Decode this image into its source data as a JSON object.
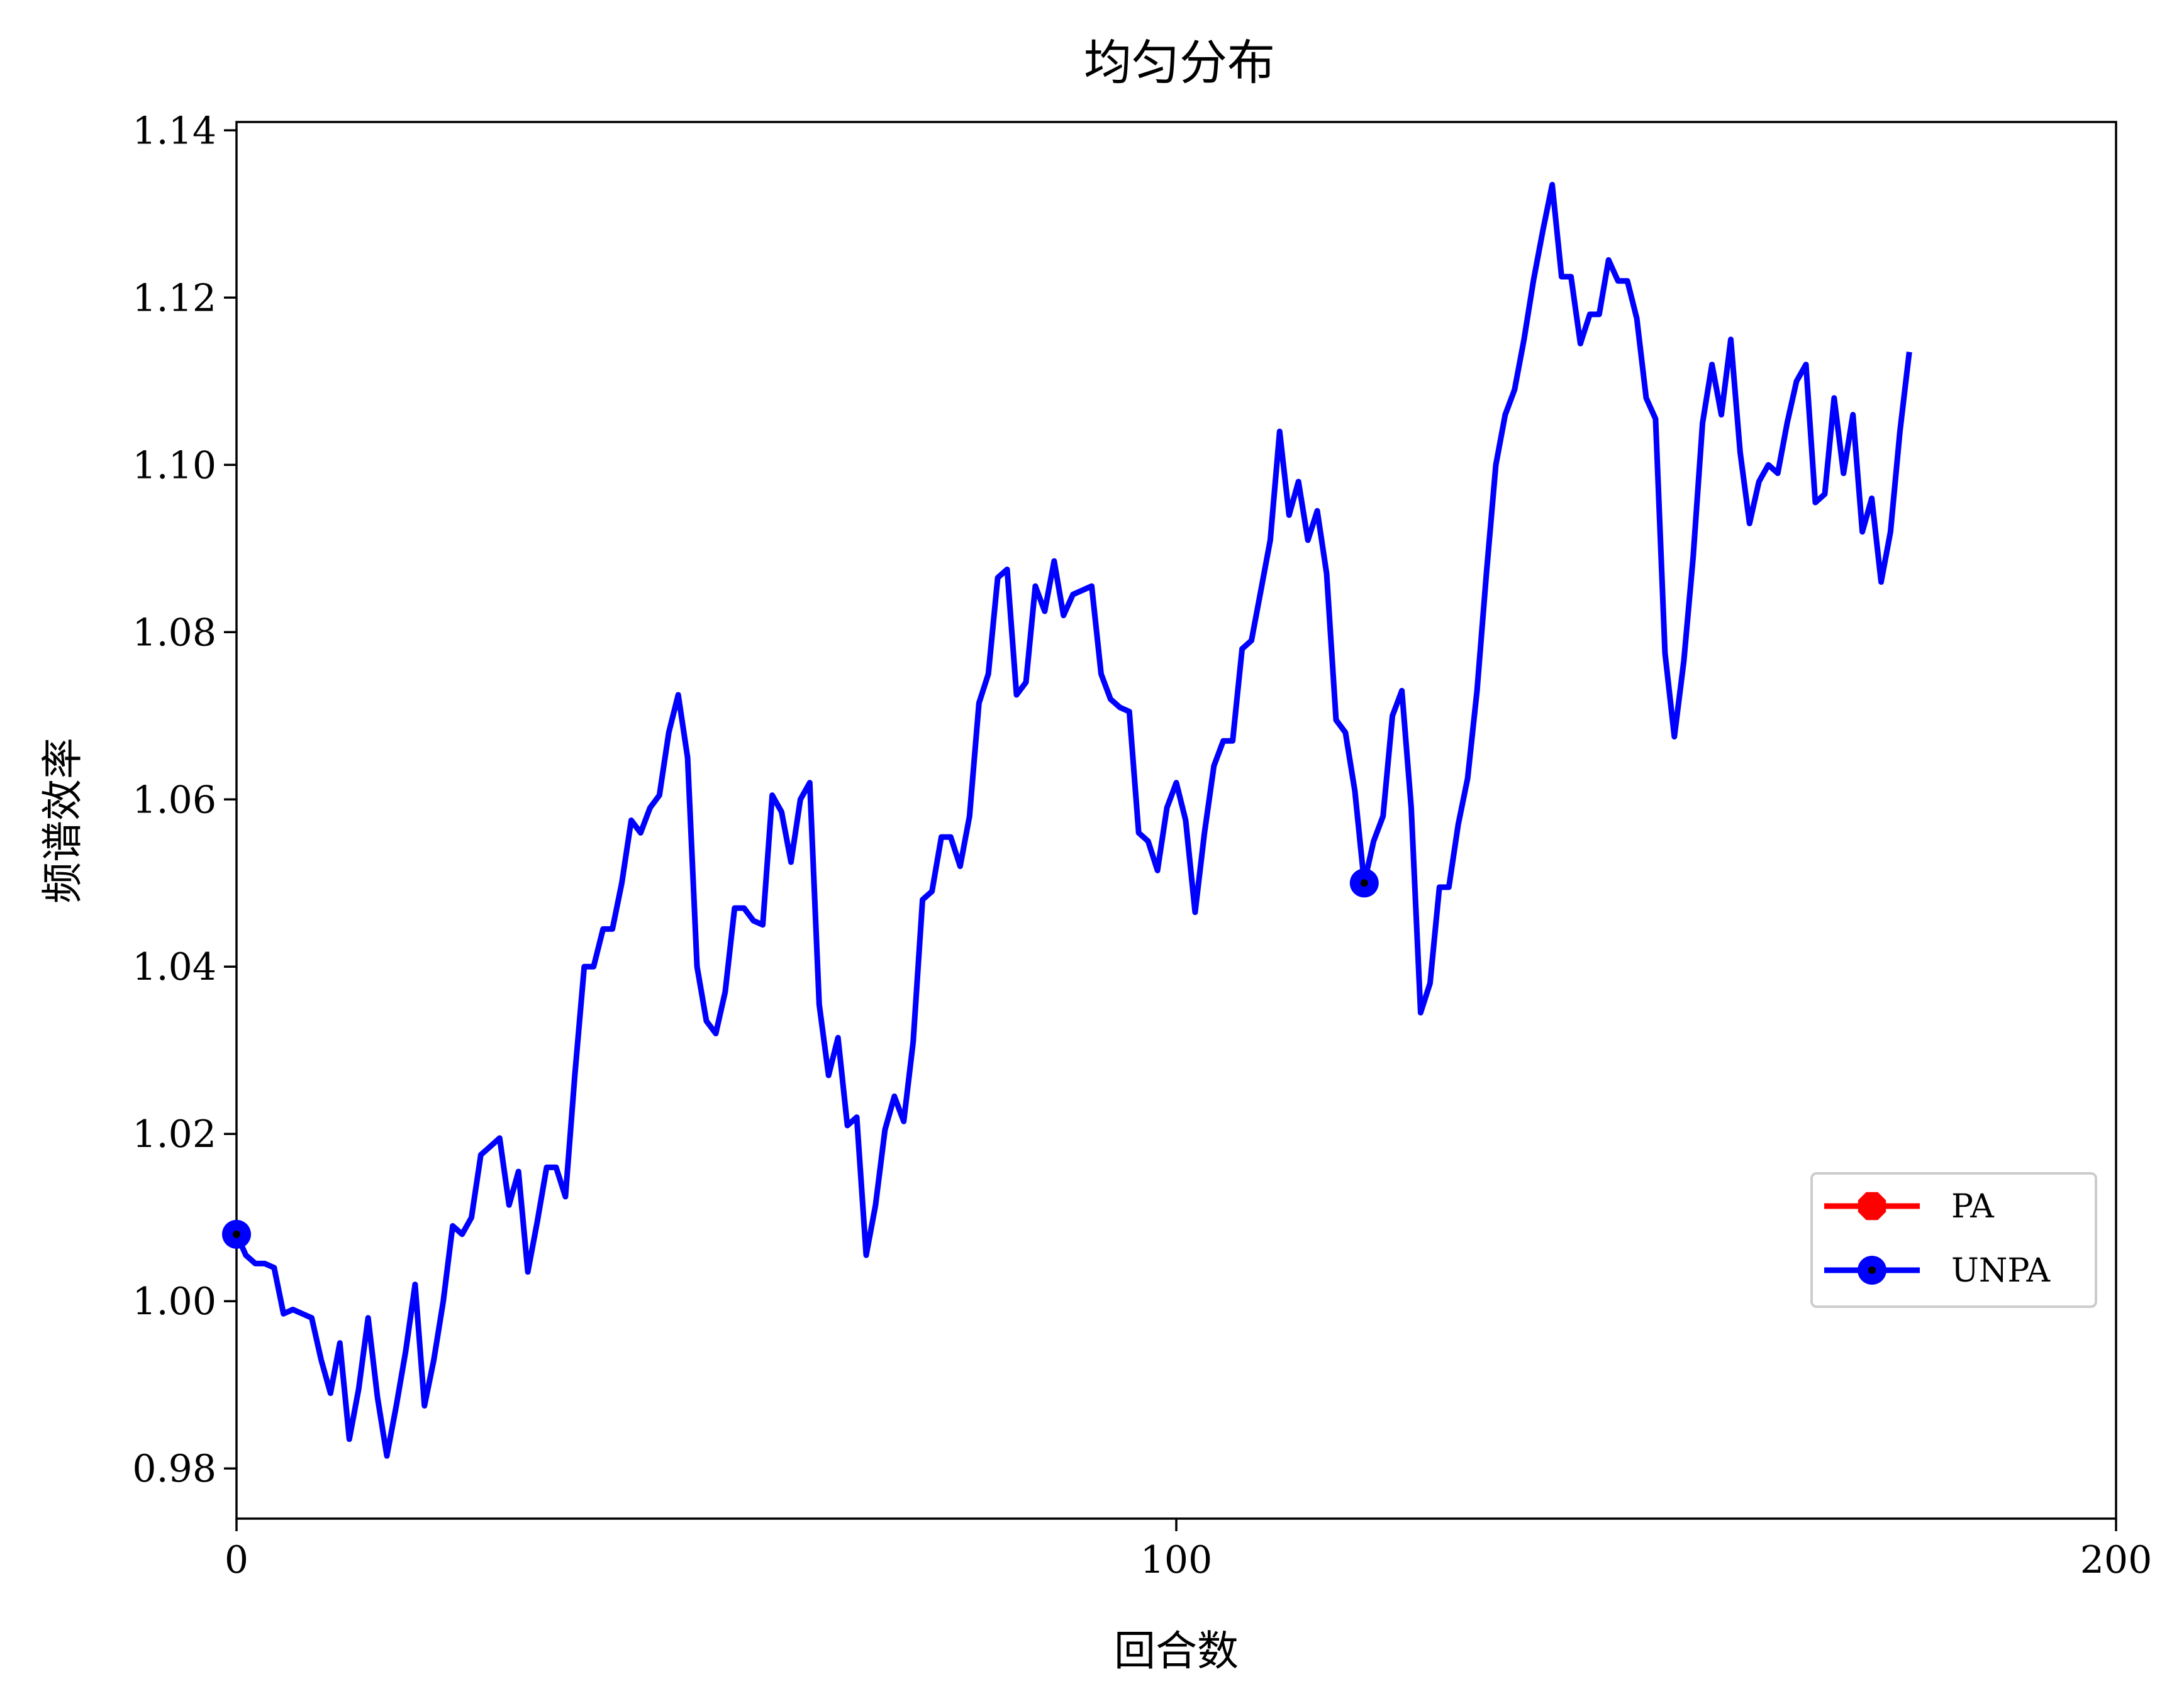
{
  "chart_data": {
    "type": "line",
    "title": "均匀分布",
    "xlabel": "回合数",
    "ylabel": "频谱效率",
    "xlim": [
      0,
      200
    ],
    "ylim": [
      0.974,
      1.141
    ],
    "xticks": [
      0,
      100,
      200
    ],
    "yticks": [
      0.98,
      1.0,
      1.02,
      1.04,
      1.06,
      1.08,
      1.1,
      1.12,
      1.14
    ],
    "ytick_labels": [
      "0.98",
      "1.00",
      "1.02",
      "1.04",
      "1.06",
      "1.08",
      "1.10",
      "1.12",
      "1.14"
    ],
    "xtick_labels": [
      "0",
      "100",
      "200"
    ],
    "grid": false,
    "legend_position": "lower-right",
    "series": [
      {
        "name": "PA",
        "color": "#ff0000",
        "marker": "octagon",
        "x": [],
        "y": []
      },
      {
        "name": "UNPA",
        "color": "#0000ff",
        "marker": "circle",
        "marker_indices": [
          0,
          120
        ],
        "x": [
          0,
          1,
          2,
          3,
          4,
          5,
          6,
          7,
          8,
          9,
          10,
          11,
          12,
          13,
          14,
          15,
          16,
          17,
          18,
          19,
          20,
          21,
          22,
          23,
          24,
          25,
          26,
          27,
          28,
          29,
          30,
          31,
          32,
          33,
          34,
          35,
          36,
          37,
          38,
          39,
          40,
          41,
          42,
          43,
          44,
          45,
          46,
          47,
          48,
          49,
          50,
          51,
          52,
          53,
          54,
          55,
          56,
          57,
          58,
          59,
          60,
          61,
          62,
          63,
          64,
          65,
          66,
          67,
          68,
          69,
          70,
          71,
          72,
          73,
          74,
          75,
          76,
          77,
          78,
          79,
          80,
          81,
          82,
          83,
          84,
          85,
          86,
          87,
          88,
          89,
          90,
          91,
          92,
          93,
          94,
          95,
          96,
          97,
          98,
          99,
          100,
          101,
          102,
          103,
          104,
          105,
          106,
          107,
          108,
          109,
          110,
          111,
          112,
          113,
          114,
          115,
          116,
          117,
          118,
          119,
          120,
          121,
          122,
          123,
          124,
          125,
          126,
          127,
          128,
          129,
          130,
          131,
          132,
          133,
          134,
          135,
          136,
          137,
          138,
          139,
          140,
          141,
          142,
          143,
          144,
          145,
          146,
          147,
          148,
          149,
          150,
          151,
          152,
          153,
          154,
          155,
          156,
          157,
          158,
          159,
          160,
          161,
          162,
          163,
          164,
          165,
          166,
          167,
          168,
          169,
          170,
          171,
          172,
          173,
          174,
          175,
          176,
          177,
          178
        ],
        "y": [
          1.008,
          1.0055,
          1.0045,
          1.0045,
          1.004,
          0.9985,
          0.999,
          0.9985,
          0.998,
          0.993,
          0.989,
          0.995,
          0.9835,
          0.9895,
          0.998,
          0.9885,
          0.9815,
          0.9875,
          0.994,
          1.002,
          0.9875,
          0.993,
          1.0,
          1.009,
          1.008,
          1.01,
          1.0175,
          1.0185,
          1.0195,
          1.0115,
          1.0155,
          1.0035,
          1.0095,
          1.016,
          1.016,
          1.0125,
          1.027,
          1.04,
          1.04,
          1.0445,
          1.0445,
          1.05,
          1.0575,
          1.056,
          1.059,
          1.0605,
          1.068,
          1.0725,
          1.065,
          1.04,
          1.0335,
          1.032,
          1.037,
          1.047,
          1.047,
          1.0455,
          1.045,
          1.0605,
          1.0585,
          1.0525,
          1.06,
          1.062,
          1.0355,
          1.027,
          1.0315,
          1.021,
          1.022,
          1.0055,
          1.0115,
          1.0205,
          1.0245,
          1.0215,
          1.031,
          1.048,
          1.049,
          1.0555,
          1.0555,
          1.052,
          1.058,
          1.0715,
          1.075,
          1.0865,
          1.0875,
          1.0725,
          1.074,
          1.0855,
          1.0825,
          1.0885,
          1.082,
          1.0845,
          1.085,
          1.0855,
          1.075,
          1.072,
          1.071,
          1.0705,
          1.056,
          1.055,
          1.0515,
          1.059,
          1.062,
          1.0575,
          1.0465,
          1.056,
          1.064,
          1.067,
          1.067,
          1.078,
          1.079,
          1.085,
          1.091,
          1.104,
          1.094,
          1.098,
          1.091,
          1.0945,
          1.087,
          1.0695,
          1.068,
          1.061,
          1.05,
          1.055,
          1.058,
          1.07,
          1.073,
          1.059,
          1.0345,
          1.038,
          1.0495,
          1.0495,
          1.057,
          1.0625,
          1.073,
          1.087,
          1.1,
          1.106,
          1.109,
          1.115,
          1.122,
          1.128,
          1.1335,
          1.1225,
          1.1225,
          1.1145,
          1.118,
          1.118,
          1.1245,
          1.122,
          1.122,
          1.1175,
          1.108,
          1.1055,
          1.0775,
          1.0675,
          1.0765,
          1.089,
          1.105,
          1.112,
          1.106,
          1.115,
          1.1015,
          1.093,
          1.098,
          1.1,
          1.099,
          1.105,
          1.11,
          1.112,
          1.0955,
          1.0965,
          1.108,
          1.099,
          1.106,
          1.092,
          1.096,
          1.086,
          1.092,
          1.104,
          1.1135
        ]
      }
    ]
  }
}
